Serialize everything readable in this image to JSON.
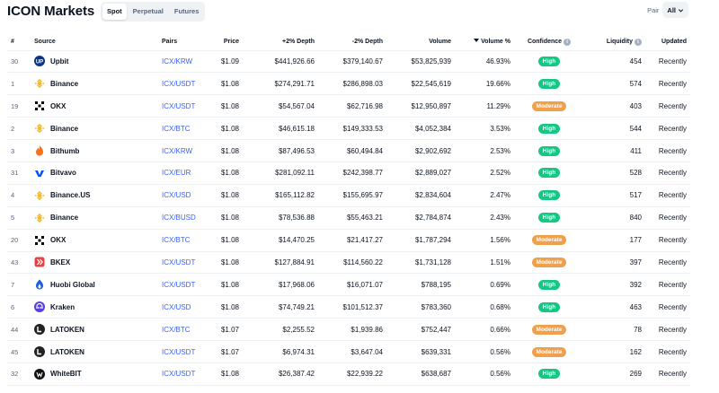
{
  "header": {
    "title": "ICON Markets",
    "tabs": [
      {
        "label": "Spot",
        "active": true
      },
      {
        "label": "Perpetual",
        "active": false
      },
      {
        "label": "Futures",
        "active": false
      }
    ],
    "pair_label": "Pair",
    "pair_value": "All"
  },
  "colors": {
    "high": "#16c784",
    "moderate": "#f0a04b",
    "link": "#3861fb"
  },
  "table": {
    "columns": {
      "rank": "#",
      "source": "Source",
      "pairs": "Pairs",
      "price": "Price",
      "plus_depth": "+2% Depth",
      "minus_depth": "-2% Depth",
      "volume": "Volume",
      "volume_pct": "Volume %",
      "confidence": "Confidence",
      "liquidity": "Liquidity",
      "updated": "Updated"
    },
    "rows": [
      {
        "rank": "30",
        "source": "Upbit",
        "logo": "upbit-logo-icon",
        "pair": "ICX/KRW",
        "price": "$1.09",
        "plus_depth": "$441,926.66",
        "minus_depth": "$379,140.67",
        "volume": "$53,825,939",
        "volume_pct": "46.93%",
        "confidence": "High",
        "liquidity": "454",
        "updated": "Recently"
      },
      {
        "rank": "1",
        "source": "Binance",
        "logo": "binance-logo-icon",
        "pair": "ICX/USDT",
        "price": "$1.08",
        "plus_depth": "$274,291.71",
        "minus_depth": "$286,898.03",
        "volume": "$22,545,619",
        "volume_pct": "19.66%",
        "confidence": "High",
        "liquidity": "574",
        "updated": "Recently"
      },
      {
        "rank": "19",
        "source": "OKX",
        "logo": "okx-logo-icon",
        "pair": "ICX/USDT",
        "price": "$1.08",
        "plus_depth": "$54,567.04",
        "minus_depth": "$62,716.98",
        "volume": "$12,950,897",
        "volume_pct": "11.29%",
        "confidence": "Moderate",
        "liquidity": "403",
        "updated": "Recently"
      },
      {
        "rank": "2",
        "source": "Binance",
        "logo": "binance-logo-icon",
        "pair": "ICX/BTC",
        "price": "$1.08",
        "plus_depth": "$46,615.18",
        "minus_depth": "$149,333.53",
        "volume": "$4,052,384",
        "volume_pct": "3.53%",
        "confidence": "High",
        "liquidity": "544",
        "updated": "Recently"
      },
      {
        "rank": "3",
        "source": "Bithumb",
        "logo": "bithumb-logo-icon",
        "pair": "ICX/KRW",
        "price": "$1.08",
        "plus_depth": "$87,496.53",
        "minus_depth": "$60,494.84",
        "volume": "$2,902,692",
        "volume_pct": "2.53%",
        "confidence": "High",
        "liquidity": "411",
        "updated": "Recently"
      },
      {
        "rank": "31",
        "source": "Bitvavo",
        "logo": "bitvavo-logo-icon",
        "pair": "ICX/EUR",
        "price": "$1.08",
        "plus_depth": "$281,092.11",
        "minus_depth": "$242,398.77",
        "volume": "$2,889,027",
        "volume_pct": "2.52%",
        "confidence": "High",
        "liquidity": "528",
        "updated": "Recently"
      },
      {
        "rank": "4",
        "source": "Binance.US",
        "logo": "binance-logo-icon",
        "pair": "ICX/USD",
        "price": "$1.08",
        "plus_depth": "$165,112.82",
        "minus_depth": "$155,695.97",
        "volume": "$2,834,604",
        "volume_pct": "2.47%",
        "confidence": "High",
        "liquidity": "517",
        "updated": "Recently"
      },
      {
        "rank": "5",
        "source": "Binance",
        "logo": "binance-logo-icon",
        "pair": "ICX/BUSD",
        "price": "$1.08",
        "plus_depth": "$78,536.88",
        "minus_depth": "$55,463.21",
        "volume": "$2,784,874",
        "volume_pct": "2.43%",
        "confidence": "High",
        "liquidity": "840",
        "updated": "Recently"
      },
      {
        "rank": "20",
        "source": "OKX",
        "logo": "okx-logo-icon",
        "pair": "ICX/BTC",
        "price": "$1.08",
        "plus_depth": "$14,470.25",
        "minus_depth": "$21,417.27",
        "volume": "$1,787,294",
        "volume_pct": "1.56%",
        "confidence": "Moderate",
        "liquidity": "177",
        "updated": "Recently"
      },
      {
        "rank": "43",
        "source": "BKEX",
        "logo": "bkex-logo-icon",
        "pair": "ICX/USDT",
        "price": "$1.08",
        "plus_depth": "$127,884.91",
        "minus_depth": "$114,560.22",
        "volume": "$1,731,128",
        "volume_pct": "1.51%",
        "confidence": "Moderate",
        "liquidity": "397",
        "updated": "Recently"
      },
      {
        "rank": "7",
        "source": "Huobi Global",
        "logo": "huobi-logo-icon",
        "pair": "ICX/USDT",
        "price": "$1.08",
        "plus_depth": "$17,968.06",
        "minus_depth": "$16,071.07",
        "volume": "$788,195",
        "volume_pct": "0.69%",
        "confidence": "High",
        "liquidity": "392",
        "updated": "Recently"
      },
      {
        "rank": "6",
        "source": "Kraken",
        "logo": "kraken-logo-icon",
        "pair": "ICX/USD",
        "price": "$1.08",
        "plus_depth": "$74,749.21",
        "minus_depth": "$101,512.37",
        "volume": "$783,360",
        "volume_pct": "0.68%",
        "confidence": "High",
        "liquidity": "463",
        "updated": "Recently"
      },
      {
        "rank": "44",
        "source": "LATOKEN",
        "logo": "latoken-logo-icon",
        "pair": "ICX/BTC",
        "price": "$1.07",
        "plus_depth": "$2,255.52",
        "minus_depth": "$1,939.86",
        "volume": "$752,447",
        "volume_pct": "0.66%",
        "confidence": "Moderate",
        "liquidity": "78",
        "updated": "Recently"
      },
      {
        "rank": "45",
        "source": "LATOKEN",
        "logo": "latoken-logo-icon",
        "pair": "ICX/USDT",
        "price": "$1.07",
        "plus_depth": "$6,974.31",
        "minus_depth": "$3,647.04",
        "volume": "$639,331",
        "volume_pct": "0.56%",
        "confidence": "Moderate",
        "liquidity": "162",
        "updated": "Recently"
      },
      {
        "rank": "32",
        "source": "WhiteBIT",
        "logo": "whitebit-logo-icon",
        "pair": "ICX/USDT",
        "price": "$1.08",
        "plus_depth": "$26,387.42",
        "minus_depth": "$22,939.22",
        "volume": "$638,687",
        "volume_pct": "0.56%",
        "confidence": "High",
        "liquidity": "269",
        "updated": "Recently"
      }
    ]
  }
}
